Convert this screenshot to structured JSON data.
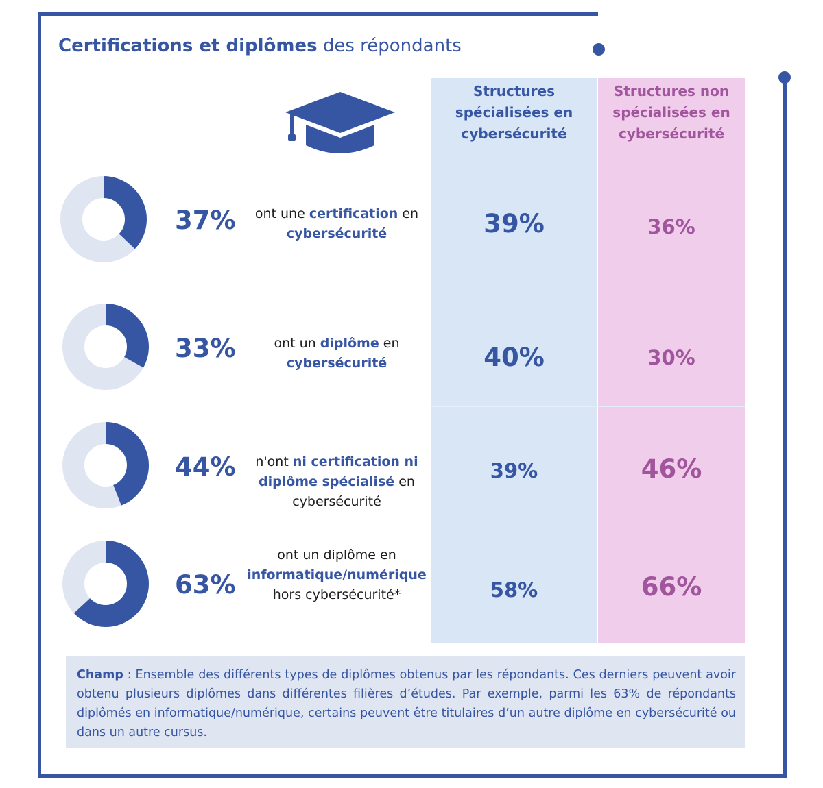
{
  "title": {
    "bold": "Certifications et diplômes",
    "rest": "des répondants"
  },
  "icon": "graduation-cap-icon",
  "colors": {
    "accent": "#3656a4",
    "donut_track": "#dfe5f1",
    "pink_text": "#a0559c",
    "blue_col": "#d8e6f6",
    "pink_col": "#f0cdea"
  },
  "columns": {
    "specialized": [
      "Structures",
      "spécialisées en",
      "cybersécurité"
    ],
    "non_specialized": [
      "Structures non",
      "spécialisées en",
      "cybersécurité"
    ]
  },
  "rows": [
    {
      "pct_label": "37%",
      "desc": {
        "l1a": "ont une ",
        "l1b": "certification",
        "l1c": " en",
        "l2": "cybersécurité"
      },
      "spec": "39%",
      "nonspec": "36%"
    },
    {
      "pct_label": "33%",
      "desc": {
        "l1a": "ont un ",
        "l1b": "diplôme",
        "l1c": " en",
        "l2": "cybersécurité"
      },
      "spec": "40%",
      "nonspec": "30%"
    },
    {
      "pct_label": "44%",
      "desc": {
        "l1a": "n'ont ",
        "l1b": "ni certification ni",
        "l2b": "diplôme spécialisé",
        "l2c": " en",
        "l3": "cybersécurité"
      },
      "spec": "39%",
      "nonspec": "46%"
    },
    {
      "pct_label": "63%",
      "desc": {
        "l1": "ont un diplôme en",
        "l2": "informatique/numérique",
        "l3": "hors cybersécurité*"
      },
      "spec": "58%",
      "nonspec": "66%"
    }
  ],
  "champ": {
    "label": "Champ",
    "text": " : Ensemble des différents types de diplômes obtenus par les répondants. Ces derniers peuvent avoir obtenu plusieurs diplômes dans différentes filières d’études. Par exemple, parmi les 63% de répondants diplômés en informatique/numérique, certains peuvent être titulaires d’un autre diplôme en cybersécurité ou dans un autre cursus."
  },
  "chart_data": {
    "type": "table",
    "title": "Certifications et diplômes des répondants",
    "categories": [
      "ont une certification en cybersécurité",
      "ont un diplôme en cybersécurité",
      "n'ont ni certification ni diplôme spécialisé en cybersécurité",
      "ont un diplôme en informatique/numérique hors cybersécurité*"
    ],
    "overall": [
      37,
      33,
      44,
      63
    ],
    "series": [
      {
        "name": "Structures spécialisées en cybersécurité",
        "values": [
          39,
          40,
          39,
          58
        ]
      },
      {
        "name": "Structures non spécialisées en cybersécurité",
        "values": [
          36,
          30,
          46,
          66
        ]
      }
    ],
    "unit": "%"
  }
}
